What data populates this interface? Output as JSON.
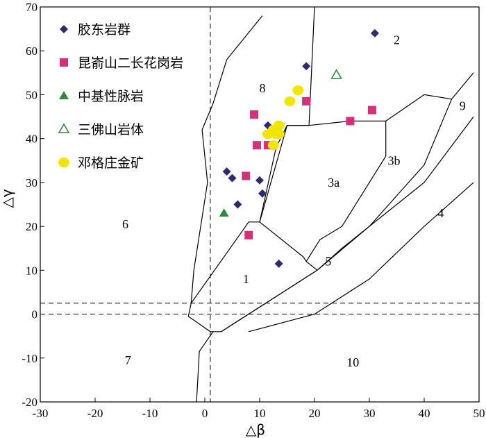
{
  "chart_data": {
    "type": "scatter",
    "xlabel": "△β",
    "ylabel": "△γ",
    "xlim": [
      -30,
      50
    ],
    "ylim": [
      -20,
      70
    ],
    "x_ticks": [
      "-30",
      "-20",
      "-10",
      "0",
      "10",
      "20",
      "30",
      "40",
      "50"
    ],
    "y_ticks": [
      "-20",
      "-10",
      "0",
      "10",
      "20",
      "30",
      "40",
      "50",
      "60",
      "70"
    ],
    "grid": false,
    "legend_position": "top-left",
    "region_labels": [
      {
        "text": "1",
        "x": 7.5,
        "y": 8
      },
      {
        "text": "2",
        "x": 35,
        "y": 62.5
      },
      {
        "text": "3a",
        "x": 23.5,
        "y": 30
      },
      {
        "text": "3b",
        "x": 34.5,
        "y": 35
      },
      {
        "text": "4",
        "x": 43,
        "y": 23
      },
      {
        "text": "5",
        "x": 22.5,
        "y": 12
      },
      {
        "text": "6",
        "x": -14.5,
        "y": 20.5
      },
      {
        "text": "7",
        "x": -14,
        "y": -10.5
      },
      {
        "text": "8",
        "x": 10.5,
        "y": 51.5
      },
      {
        "text": "9",
        "x": 47,
        "y": 47.5
      },
      {
        "text": "10",
        "x": 27,
        "y": -11
      }
    ],
    "series": [
      {
        "name": "胶东岩群",
        "marker": "diamond",
        "color": "#2e2a6e",
        "points": [
          [
            4,
            32.5
          ],
          [
            5,
            31
          ],
          [
            6,
            25
          ],
          [
            10,
            30.5
          ],
          [
            10.5,
            27.5
          ],
          [
            11.5,
            43
          ],
          [
            13.5,
            11.5
          ],
          [
            18.5,
            56.5
          ],
          [
            31,
            64
          ]
        ]
      },
      {
        "name": "昆嵛山二长花岗岩",
        "marker": "square",
        "color": "#d6307a",
        "points": [
          [
            7.5,
            31.5
          ],
          [
            8,
            18
          ],
          [
            9,
            45.5
          ],
          [
            9.5,
            38.5
          ],
          [
            11.5,
            38.5
          ],
          [
            18.5,
            48.5
          ],
          [
            26.5,
            44
          ],
          [
            30.5,
            46.5
          ]
        ]
      },
      {
        "name": "中基性脉岩",
        "marker": "triangle",
        "color": "#2e8b3a",
        "points": [
          [
            3.5,
            23
          ]
        ]
      },
      {
        "name": "三佛山岩体",
        "marker": "triangle-open",
        "color": "#2e8b3a",
        "points": [
          [
            24,
            54.5
          ]
        ]
      },
      {
        "name": "邓格庄金矿",
        "marker": "circle",
        "color": "#f2e600",
        "points": [
          [
            11.5,
            41
          ],
          [
            12.5,
            42
          ],
          [
            13,
            41
          ],
          [
            13.5,
            43
          ],
          [
            12.5,
            38.5
          ],
          [
            13.5,
            41
          ],
          [
            15.5,
            48.5
          ],
          [
            17,
            51
          ]
        ]
      }
    ]
  }
}
